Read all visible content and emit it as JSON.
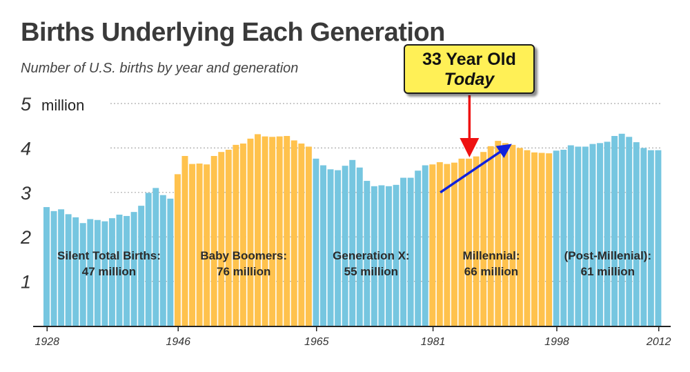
{
  "colors": {
    "blue_bar": "#76c6e0",
    "orange_bar": "#ffc24d",
    "grid": "#aaaaaa",
    "axis": "#222222",
    "red_arrow": "#ee1111",
    "blue_arrow": "#1122dd"
  },
  "chart_data": {
    "type": "bar",
    "title": "Births Underlying Each Generation",
    "subtitle": "Number of U.S. births by year and generation",
    "ylabel_unit": "million",
    "ylim": [
      0,
      5
    ],
    "yticks": [
      1,
      2,
      3,
      4,
      5
    ],
    "x_start": 1928,
    "x_end": 2012,
    "xticks": [
      1928,
      1946,
      1965,
      1981,
      1998,
      2012
    ],
    "grid": true,
    "values": [
      2.67,
      2.58,
      2.62,
      2.51,
      2.44,
      2.31,
      2.4,
      2.38,
      2.35,
      2.42,
      2.5,
      2.47,
      2.56,
      2.7,
      2.99,
      3.1,
      2.94,
      2.86,
      3.41,
      3.82,
      3.64,
      3.65,
      3.63,
      3.82,
      3.91,
      3.96,
      4.07,
      4.1,
      4.21,
      4.31,
      4.26,
      4.25,
      4.26,
      4.27,
      4.17,
      4.1,
      4.03,
      3.76,
      3.61,
      3.52,
      3.5,
      3.6,
      3.73,
      3.56,
      3.26,
      3.14,
      3.16,
      3.14,
      3.17,
      3.33,
      3.33,
      3.49,
      3.61,
      3.63,
      3.68,
      3.64,
      3.67,
      3.76,
      3.76,
      3.81,
      3.91,
      4.04,
      4.16,
      4.11,
      4.07,
      4.0,
      3.95,
      3.9,
      3.89,
      3.88,
      3.94,
      3.96,
      4.06,
      4.03,
      4.03,
      4.09,
      4.11,
      4.14,
      4.27,
      4.32,
      4.25,
      4.13,
      4.0,
      3.95,
      3.95
    ],
    "generations": [
      {
        "name": "Silent Total Births:",
        "total": "47 million",
        "start": 1928,
        "end": 1945,
        "color": "blue"
      },
      {
        "name": "Baby Boomers:",
        "total": "76 million",
        "start": 1946,
        "end": 1964,
        "color": "orange"
      },
      {
        "name": "Generation X:",
        "total": "55 million",
        "start": 1965,
        "end": 1980,
        "color": "blue"
      },
      {
        "name": "Millennial:",
        "total": "66 million",
        "start": 1981,
        "end": 1997,
        "color": "orange"
      },
      {
        "name": "(Post-Millenial):",
        "total": "61 million",
        "start": 1998,
        "end": 2012,
        "color": "blue"
      }
    ],
    "annotations": {
      "callout_line1": "33 Year Old",
      "callout_line2": "Today",
      "red_arrow_target_year": 1986,
      "blue_arrow_from": {
        "year": 1982,
        "value": 3.0
      },
      "blue_arrow_to": {
        "year": 1991,
        "value": 4.0
      }
    }
  }
}
